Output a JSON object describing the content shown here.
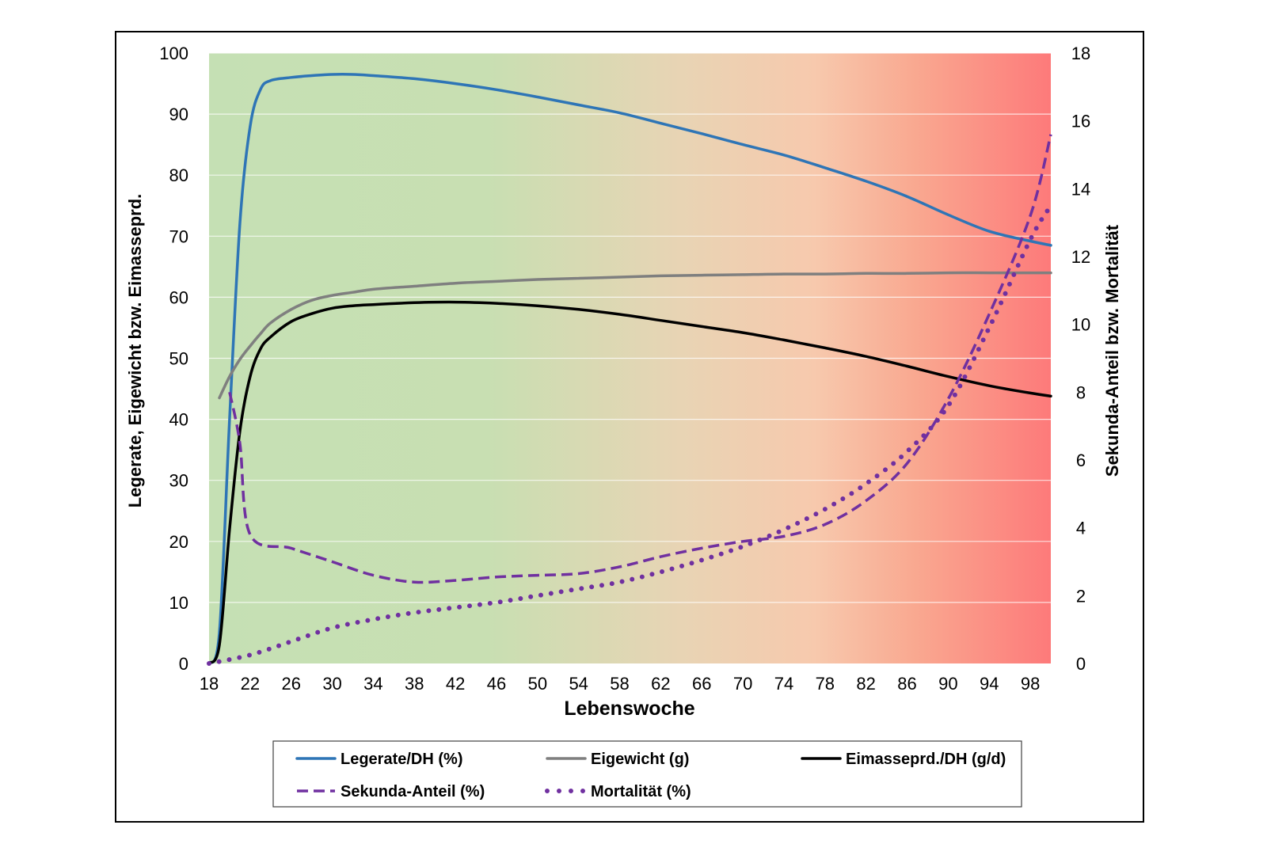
{
  "chart_data": {
    "type": "line",
    "xlabel": "Lebenswoche",
    "ylabel_left": "Legerate, Eigewicht bzw. Eimasseprd.",
    "ylabel_right": "Sekunda-Anteil bzw. Mortalität",
    "xlim": [
      18,
      100
    ],
    "ylim_left": [
      0,
      100
    ],
    "ylim_right": [
      0,
      18
    ],
    "x_ticks": [
      18,
      22,
      26,
      30,
      34,
      38,
      42,
      46,
      50,
      54,
      58,
      62,
      66,
      70,
      74,
      78,
      82,
      86,
      90,
      94,
      98
    ],
    "y_ticks_left": [
      0,
      10,
      20,
      30,
      40,
      50,
      60,
      70,
      80,
      90,
      100
    ],
    "y_ticks_right": [
      0,
      2,
      4,
      6,
      8,
      10,
      12,
      14,
      16,
      18
    ],
    "grid": "horizontal",
    "background_gradient": [
      "#c5e0b4",
      "#c8dfb2",
      "#e8d4b4",
      "#f7c9ad",
      "#f9a890",
      "#fd7a7a"
    ],
    "legend_position": "bottom",
    "series": [
      {
        "name": "Legerate/DH (%)",
        "axis": "left",
        "style": "solid",
        "color": "#2e75b6",
        "x": [
          18,
          19,
          20,
          21,
          22,
          23,
          24,
          26,
          28,
          30,
          32,
          34,
          38,
          42,
          46,
          50,
          54,
          58,
          62,
          66,
          70,
          74,
          78,
          82,
          86,
          90,
          94,
          98,
          100
        ],
        "y": [
          0,
          5,
          40,
          72,
          88,
          94,
          95.5,
          96,
          96.3,
          96.5,
          96.5,
          96.3,
          95.8,
          95,
          94,
          92.8,
          91.5,
          90.2,
          88.5,
          86.8,
          85,
          83.3,
          81.2,
          79,
          76.5,
          73.5,
          70.8,
          69.2,
          68.5
        ]
      },
      {
        "name": "Eigewicht (g)",
        "axis": "left",
        "style": "solid",
        "color": "#7f7f7f",
        "x": [
          19,
          20,
          21,
          22,
          23,
          24,
          26,
          28,
          30,
          32,
          34,
          38,
          42,
          46,
          50,
          54,
          58,
          62,
          66,
          70,
          74,
          78,
          82,
          86,
          90,
          94,
          98,
          100
        ],
        "y": [
          43.5,
          47,
          49.8,
          52,
          54,
          55.8,
          58,
          59.5,
          60.3,
          60.8,
          61.3,
          61.8,
          62.3,
          62.6,
          62.9,
          63.1,
          63.3,
          63.5,
          63.6,
          63.7,
          63.8,
          63.8,
          63.9,
          63.9,
          64,
          64,
          64,
          64
        ]
      },
      {
        "name": "Eimasseprd./DH (g/d)",
        "axis": "left",
        "style": "solid",
        "color": "#000000",
        "x": [
          18,
          19,
          20,
          21,
          22,
          23,
          24,
          26,
          28,
          30,
          32,
          34,
          38,
          42,
          46,
          50,
          54,
          58,
          62,
          66,
          70,
          74,
          78,
          82,
          86,
          90,
          94,
          98,
          100
        ],
        "y": [
          0,
          3,
          22,
          38,
          47,
          51.5,
          53.5,
          56,
          57.3,
          58.2,
          58.6,
          58.8,
          59.1,
          59.2,
          59,
          58.6,
          58,
          57.2,
          56.2,
          55.2,
          54.2,
          53,
          51.7,
          50.3,
          48.7,
          47,
          45.5,
          44.3,
          43.8
        ]
      },
      {
        "name": "Sekunda-Anteil (%)",
        "axis": "right",
        "style": "dashed",
        "color": "#7030a0",
        "x": [
          20,
          21,
          22,
          26,
          30,
          34,
          38,
          42,
          46,
          50,
          54,
          58,
          62,
          66,
          70,
          74,
          78,
          82,
          86,
          90,
          94,
          98,
          100
        ],
        "y": [
          8,
          6.5,
          3.8,
          3.4,
          3,
          2.6,
          2.4,
          2.45,
          2.55,
          2.6,
          2.65,
          2.85,
          3.15,
          3.4,
          3.6,
          3.75,
          4.1,
          4.8,
          5.9,
          7.8,
          10.3,
          13.2,
          15.6
        ]
      },
      {
        "name": "Mortalität (%)",
        "axis": "right",
        "style": "dotted",
        "color": "#7030a0",
        "x": [
          18,
          22,
          26,
          30,
          34,
          38,
          42,
          46,
          50,
          54,
          58,
          62,
          66,
          70,
          74,
          78,
          82,
          86,
          90,
          94,
          98,
          100
        ],
        "y": [
          0,
          0.25,
          0.65,
          1.05,
          1.3,
          1.5,
          1.65,
          1.8,
          2,
          2.2,
          2.4,
          2.7,
          3.05,
          3.45,
          3.95,
          4.55,
          5.3,
          6.25,
          7.6,
          9.9,
          12.5,
          13.5
        ]
      }
    ]
  }
}
